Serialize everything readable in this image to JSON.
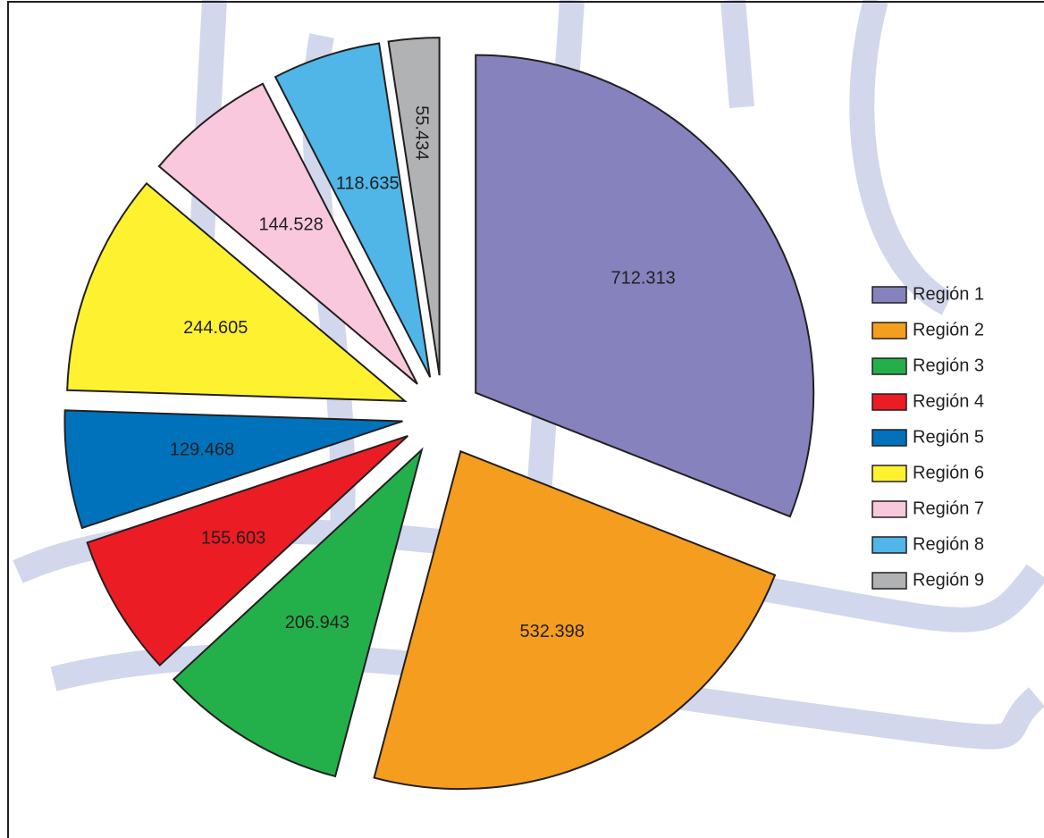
{
  "chart_data": {
    "type": "pie",
    "categories": [
      "Región 1",
      "Región 2",
      "Región 3",
      "Región 4",
      "Región 5",
      "Región 6",
      "Región 7",
      "Región 8",
      "Región 9"
    ],
    "values": [
      712.313,
      532.398,
      206.943,
      155.603,
      129.468,
      244.605,
      144.528,
      118.635,
      55.434
    ],
    "colors": [
      "#8582bd",
      "#f59d1e",
      "#23b04b",
      "#ec1c24",
      "#0072bb",
      "#fef230",
      "#f9c8dc",
      "#4fb6e7",
      "#b1b2b4"
    ],
    "legend": "right"
  }
}
